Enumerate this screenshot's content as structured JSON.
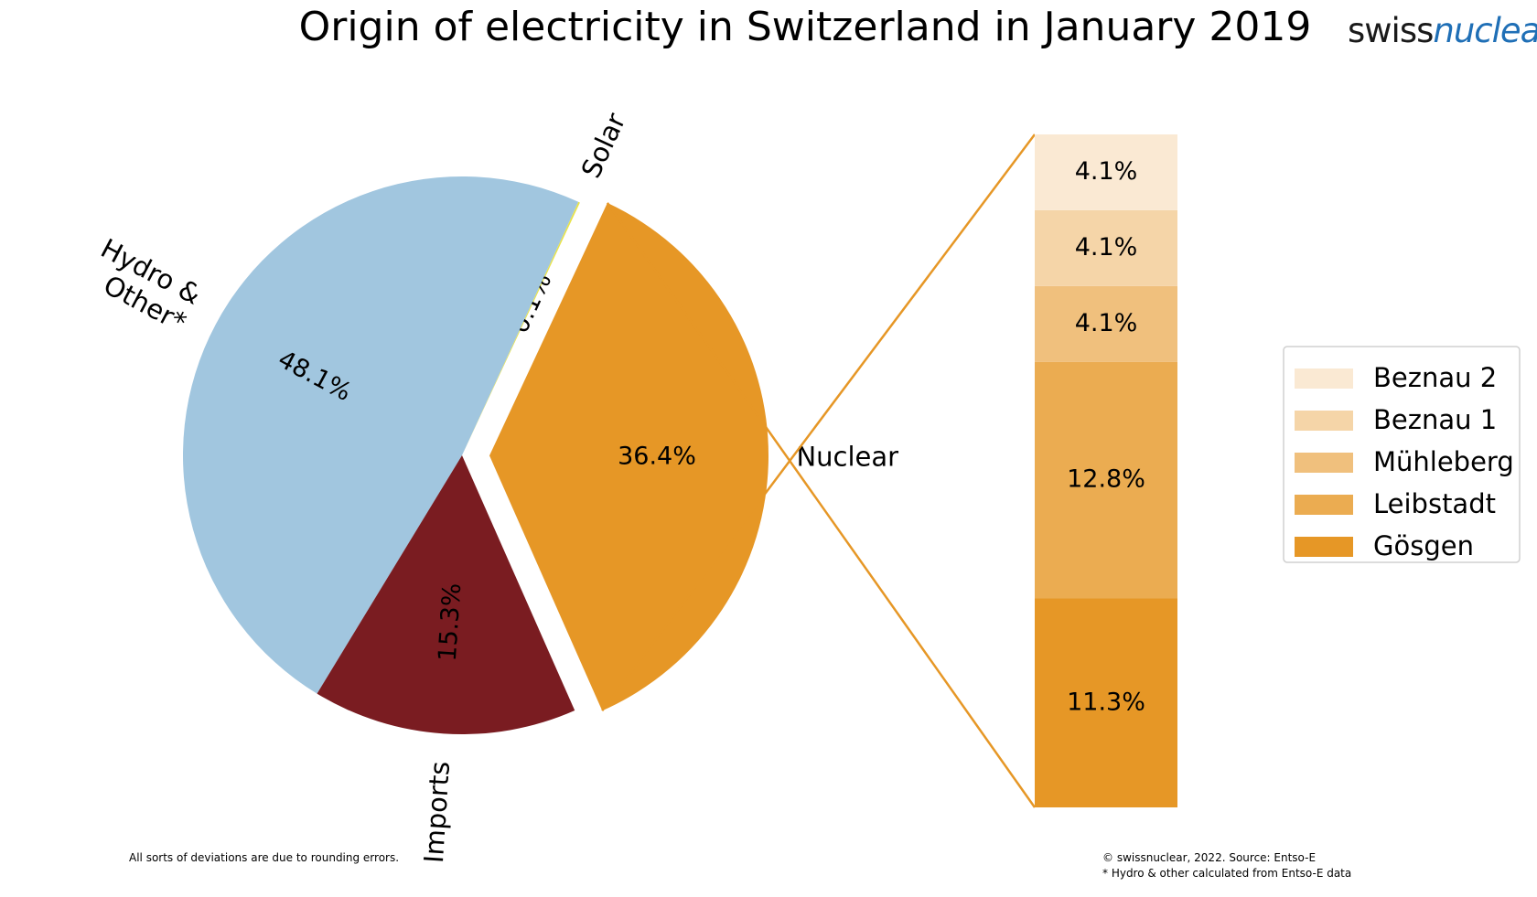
{
  "logo": {
    "part1": "swiss",
    "part2": "nuclear"
  },
  "chart_data": [
    {
      "type": "pie",
      "title": "Origin of electricity in Switzerland in January 2019",
      "slices": [
        {
          "label": "Solar",
          "value": 0.1,
          "value_label": "0.1%",
          "color": "#e8e34a",
          "exploded": false
        },
        {
          "label": "Hydro & Other*",
          "value": 48.1,
          "value_label": "48.1%",
          "color": "#a1c6df",
          "exploded": false
        },
        {
          "label": "Imports",
          "value": 15.3,
          "value_label": "15.3%",
          "color": "#7a1c21",
          "exploded": false
        },
        {
          "label": "Nuclear",
          "value": 36.4,
          "value_label": "36.4%",
          "color": "#e69726",
          "exploded": true
        }
      ]
    },
    {
      "type": "bar",
      "stacked": true,
      "series": [
        {
          "name": "Gösgen",
          "value": 11.3,
          "value_label": "11.3%",
          "color": "#e69726"
        },
        {
          "name": "Leibstadt",
          "value": 12.8,
          "value_label": "12.8%",
          "color": "#ebac51"
        },
        {
          "name": "Mühleberg",
          "value": 4.1,
          "value_label": "4.1%",
          "color": "#f0c07d"
        },
        {
          "name": "Beznau 1",
          "value": 4.1,
          "value_label": "4.1%",
          "color": "#f5d5a8"
        },
        {
          "name": "Beznau 2",
          "value": 4.1,
          "value_label": "4.1%",
          "color": "#fae9d3"
        }
      ],
      "legend": {
        "placement": "right",
        "order": [
          "Beznau 2",
          "Beznau 1",
          "Mühleberg",
          "Leibstadt",
          "Gösgen"
        ]
      }
    }
  ],
  "notes": {
    "rounding": "All sorts of deviations are due to rounding errors.",
    "copyright": "© swissnuclear, 2022. Source: Entso-E",
    "footnote": "* Hydro & other calculated from Entso-E data"
  }
}
